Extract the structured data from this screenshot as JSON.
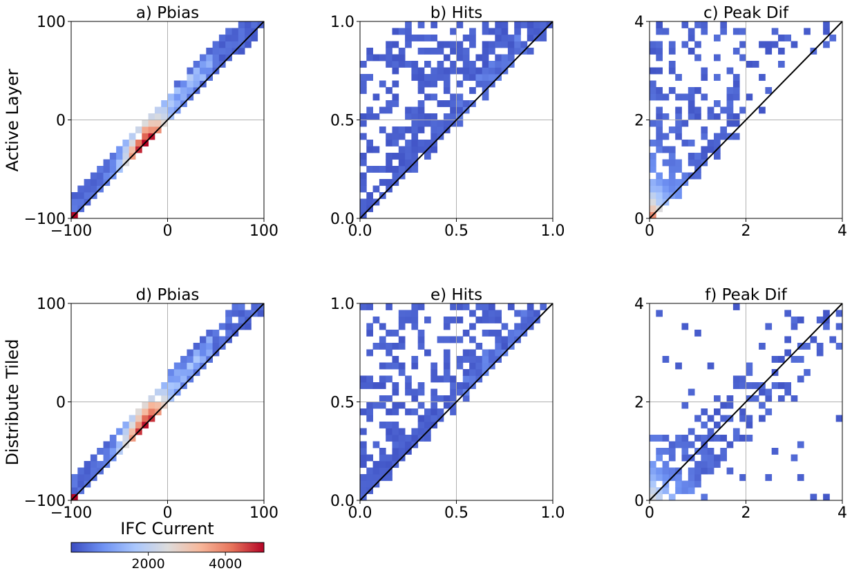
{
  "row_labels": [
    "Active Layer",
    "Distribute Tiled"
  ],
  "colorbar": {
    "label": "IFC Current",
    "ticks": [
      2000,
      4000
    ],
    "range": [
      0,
      5000
    ],
    "colormap": [
      "#3b4cc0",
      "#6f92f3",
      "#aac7fd",
      "#dddcdc",
      "#f7b89c",
      "#e7745b",
      "#b40426"
    ]
  },
  "chart_data": [
    {
      "type": "heatmap",
      "title": "a) Pbias",
      "xlim": [
        -100,
        100
      ],
      "ylim": [
        -100,
        100
      ],
      "xticks": [
        "−100",
        "0",
        "100"
      ],
      "yticks": [
        "−100",
        "0",
        "100"
      ],
      "grid": true,
      "bins": 30,
      "variant": "pbias",
      "spread": 14,
      "reference_line": "y=x"
    },
    {
      "type": "heatmap",
      "title": "b) Hits",
      "xlim": [
        0,
        1
      ],
      "ylim": [
        0,
        1
      ],
      "xticks": [
        "0.0",
        "0.5",
        "1.0"
      ],
      "yticks": [
        "0.0",
        "0.5",
        "1.0"
      ],
      "grid": true,
      "bins": 30,
      "variant": "hits",
      "reference_line": "y=x"
    },
    {
      "type": "heatmap",
      "title": "c) Peak Dif",
      "xlim": [
        0,
        4
      ],
      "ylim": [
        0,
        4
      ],
      "xticks": [
        "0",
        "2",
        "4"
      ],
      "yticks": [
        "0",
        "2",
        "4"
      ],
      "grid": true,
      "bins": 30,
      "variant": "peak_above",
      "reference_line": "y=x"
    },
    {
      "type": "heatmap",
      "title": "d) Pbias",
      "xlim": [
        -100,
        100
      ],
      "ylim": [
        -100,
        100
      ],
      "xticks": [
        "−100",
        "0",
        "100"
      ],
      "yticks": [
        "−100",
        "0",
        "100"
      ],
      "grid": true,
      "bins": 30,
      "variant": "pbias",
      "spread": 16,
      "reference_line": "y=x"
    },
    {
      "type": "heatmap",
      "title": "e) Hits",
      "xlim": [
        0,
        1
      ],
      "ylim": [
        0,
        1
      ],
      "xticks": [
        "0.0",
        "0.5",
        "1.0"
      ],
      "yticks": [
        "0.0",
        "0.5",
        "1.0"
      ],
      "grid": true,
      "bins": 30,
      "variant": "hits",
      "reference_line": "y=x"
    },
    {
      "type": "heatmap",
      "title": "f) Peak Dif",
      "xlim": [
        0,
        4
      ],
      "ylim": [
        0,
        4
      ],
      "xticks": [
        "0",
        "2",
        "4"
      ],
      "yticks": [
        "0",
        "2",
        "4"
      ],
      "grid": true,
      "bins": 30,
      "variant": "peak_both",
      "reference_line": "y=x"
    }
  ]
}
